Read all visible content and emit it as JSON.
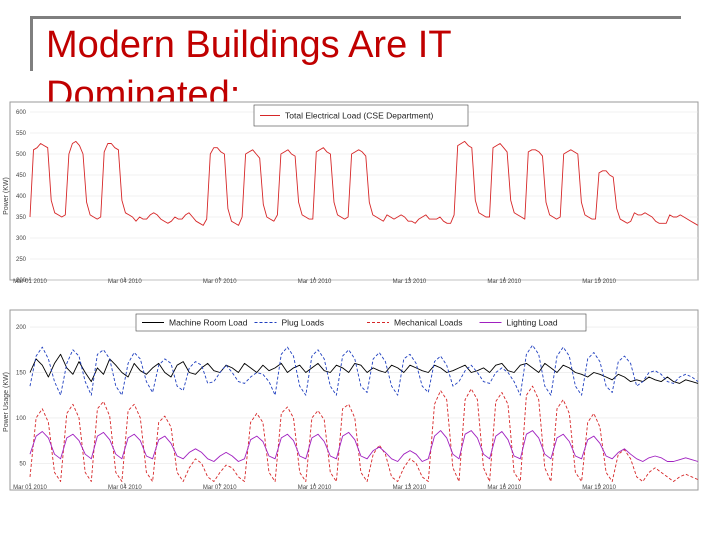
{
  "slide": {
    "title_line1": "Modern Buildings Are IT",
    "title_line2": "Dominated:"
  },
  "chart_data": [
    {
      "type": "line",
      "ylabel": "Power (KW)",
      "ylim": [
        200,
        600
      ],
      "yticks": [
        "200",
        "250",
        "300",
        "350",
        "400",
        "450",
        "500",
        "550",
        "600"
      ],
      "x_tick_labels": [
        "Mar 01 2010",
        "Mar 04 2010",
        "Mar 07 2010",
        "Mar 10 2010",
        "Mar 13 2010",
        "Mar 16 2010",
        "Mar 19 2010"
      ],
      "grid": true,
      "legend_position": "top-center",
      "series": [
        {
          "name": "Total Electrical Load (CSE Department)",
          "color": "#d62728",
          "dash": "solid",
          "values": [
            350,
            510,
            515,
            525,
            520,
            515,
            390,
            360,
            355,
            350,
            355,
            500,
            525,
            530,
            520,
            500,
            385,
            355,
            350,
            345,
            350,
            505,
            525,
            525,
            515,
            510,
            390,
            360,
            355,
            350,
            340,
            350,
            345,
            345,
            355,
            360,
            355,
            345,
            340,
            335,
            340,
            350,
            345,
            345,
            355,
            360,
            350,
            340,
            335,
            330,
            345,
            500,
            515,
            515,
            505,
            500,
            370,
            340,
            335,
            330,
            350,
            500,
            505,
            510,
            500,
            490,
            380,
            350,
            345,
            340,
            355,
            500,
            505,
            510,
            500,
            495,
            385,
            355,
            350,
            345,
            345,
            505,
            510,
            515,
            505,
            500,
            385,
            355,
            350,
            345,
            350,
            500,
            505,
            510,
            505,
            495,
            385,
            355,
            350,
            345,
            340,
            355,
            350,
            345,
            350,
            355,
            350,
            340,
            340,
            335,
            345,
            350,
            355,
            345,
            345,
            345,
            350,
            340,
            335,
            335,
            355,
            520,
            525,
            530,
            520,
            515,
            390,
            360,
            355,
            350,
            350,
            515,
            520,
            525,
            515,
            505,
            390,
            360,
            355,
            350,
            345,
            505,
            510,
            510,
            505,
            495,
            385,
            355,
            350,
            345,
            350,
            500,
            505,
            510,
            505,
            500,
            385,
            355,
            350,
            345,
            345,
            455,
            460,
            460,
            450,
            445,
            370,
            345,
            340,
            335,
            340,
            360,
            355,
            355,
            360,
            355,
            350,
            340,
            335,
            335,
            335,
            355,
            350,
            350,
            355,
            350,
            345,
            340,
            335,
            330
          ]
        }
      ]
    },
    {
      "type": "line",
      "ylabel": "Power Usage (KW)",
      "ylim": [
        25,
        210
      ],
      "yticks": [
        "50",
        "100",
        "150",
        "200"
      ],
      "x_tick_labels": [
        "Mar 01 2010",
        "Mar 04 2010",
        "Mar 07 2010",
        "Mar 10 2010",
        "Mar 13 2010",
        "Mar 16 2010",
        "Mar 19 2010"
      ],
      "grid": true,
      "legend_position": "top-center",
      "series": [
        {
          "name": "Machine Room Load",
          "color": "#000000",
          "dash": "solid",
          "values": [
            150,
            165,
            158,
            145,
            160,
            170,
            155,
            148,
            162,
            150,
            140,
            155,
            148,
            165,
            158,
            150,
            145,
            160,
            152,
            148,
            155,
            160,
            150,
            145,
            158,
            162,
            150,
            148,
            155,
            160,
            152,
            150,
            158,
            155,
            150,
            160,
            155,
            150,
            158,
            152,
            155,
            160,
            150,
            155,
            158,
            150,
            155,
            160,
            152,
            150,
            158,
            155,
            150,
            160,
            158,
            150,
            155,
            152,
            150,
            158,
            155,
            150,
            158,
            155,
            152,
            150,
            158,
            155,
            150,
            152,
            155,
            158,
            150,
            152,
            155,
            150,
            158,
            160,
            152,
            150,
            158,
            160,
            155,
            150,
            160,
            155,
            150,
            158,
            155,
            150,
            148,
            145,
            150,
            148,
            145,
            142,
            148,
            145,
            140,
            142,
            140,
            145,
            142,
            140,
            145,
            140,
            138,
            142,
            140,
            138
          ]
        },
        {
          "name": "Plug Loads",
          "color": "#1f3fbf",
          "dash": "dashed",
          "values": [
            135,
            168,
            178,
            165,
            140,
            125,
            160,
            175,
            168,
            140,
            125,
            170,
            175,
            165,
            135,
            125,
            160,
            172,
            165,
            140,
            128,
            158,
            165,
            160,
            135,
            130,
            155,
            162,
            158,
            138,
            140,
            150,
            158,
            150,
            140,
            138,
            145,
            150,
            148,
            140,
            125,
            170,
            178,
            168,
            135,
            125,
            168,
            175,
            165,
            135,
            125,
            168,
            175,
            165,
            135,
            128,
            165,
            172,
            162,
            135,
            125,
            165,
            170,
            160,
            135,
            128,
            162,
            168,
            158,
            135,
            140,
            152,
            158,
            150,
            140,
            138,
            150,
            155,
            150,
            140,
            125,
            170,
            180,
            170,
            135,
            125,
            168,
            178,
            168,
            135,
            125,
            165,
            172,
            162,
            135,
            128,
            162,
            168,
            160,
            135,
            140,
            150,
            152,
            148,
            140,
            138,
            145,
            148,
            145,
            140
          ]
        },
        {
          "name": "Mechanical Loads",
          "color": "#d62728",
          "dash": "dashed",
          "values": [
            35,
            100,
            110,
            95,
            40,
            30,
            105,
            115,
            100,
            40,
            30,
            110,
            118,
            102,
            40,
            30,
            108,
            115,
            100,
            40,
            30,
            95,
            102,
            90,
            40,
            30,
            45,
            55,
            50,
            35,
            30,
            40,
            48,
            45,
            35,
            30,
            95,
            105,
            95,
            40,
            30,
            105,
            112,
            100,
            40,
            30,
            100,
            108,
            98,
            40,
            30,
            110,
            115,
            100,
            40,
            30,
            60,
            70,
            60,
            35,
            30,
            45,
            55,
            50,
            35,
            30,
            115,
            130,
            120,
            45,
            30,
            120,
            132,
            120,
            45,
            30,
            118,
            128,
            115,
            40,
            30,
            125,
            135,
            120,
            45,
            30,
            110,
            120,
            105,
            40,
            30,
            95,
            105,
            90,
            40,
            30,
            60,
            65,
            55,
            35,
            30,
            40,
            45,
            40,
            35,
            30,
            35,
            38,
            35,
            32
          ]
        },
        {
          "name": "Lighting Load",
          "color": "#a020c0",
          "dash": "solid",
          "values": [
            60,
            80,
            85,
            78,
            60,
            55,
            78,
            82,
            75,
            60,
            55,
            80,
            84,
            76,
            60,
            55,
            78,
            82,
            75,
            58,
            55,
            76,
            80,
            72,
            58,
            55,
            62,
            66,
            62,
            55,
            52,
            58,
            62,
            58,
            52,
            55,
            76,
            80,
            74,
            58,
            55,
            78,
            82,
            75,
            58,
            55,
            78,
            82,
            74,
            58,
            55,
            80,
            84,
            76,
            58,
            55,
            64,
            68,
            62,
            55,
            52,
            60,
            64,
            60,
            52,
            55,
            80,
            86,
            78,
            60,
            55,
            82,
            86,
            78,
            60,
            55,
            80,
            85,
            76,
            58,
            55,
            82,
            86,
            78,
            60,
            55,
            78,
            82,
            74,
            58,
            55,
            76,
            80,
            72,
            58,
            55,
            62,
            66,
            60,
            55,
            52,
            56,
            58,
            56,
            52,
            52,
            54,
            56,
            54,
            52
          ]
        }
      ]
    }
  ]
}
